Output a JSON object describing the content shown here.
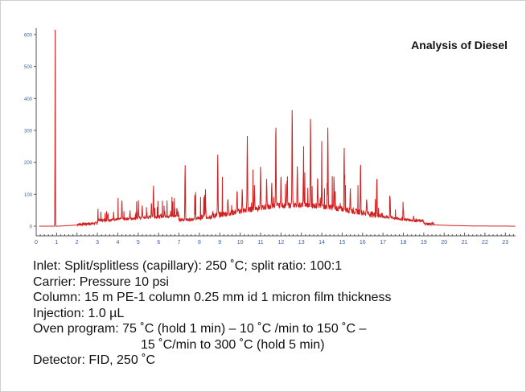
{
  "chart_data": {
    "type": "line",
    "title": "Analysis of Diesel",
    "xlabel": "",
    "ylabel": "",
    "xlim": [
      0,
      23.5
    ],
    "ylim": [
      -20,
      620
    ],
    "x_ticks": [
      "0",
      "1",
      "2",
      "3",
      "4",
      "5",
      "6",
      "7",
      "8",
      "9",
      "10",
      "11",
      "12",
      "13",
      "14",
      "15",
      "16",
      "17",
      "18",
      "19",
      "20",
      "21",
      "22",
      "23"
    ],
    "y_ticks": [
      "0",
      "100",
      "200",
      "300",
      "400",
      "500",
      "600"
    ],
    "grid": false,
    "series_color": "#d21f1f",
    "peaks": [
      {
        "x": 0.93,
        "y": 615
      },
      {
        "x": 3.1,
        "y": 22
      },
      {
        "x": 3.5,
        "y": 38
      },
      {
        "x": 3.8,
        "y": 40
      },
      {
        "x": 4.2,
        "y": 80
      },
      {
        "x": 4.6,
        "y": 45
      },
      {
        "x": 5.0,
        "y": 50
      },
      {
        "x": 5.2,
        "y": 65
      },
      {
        "x": 5.65,
        "y": 75
      },
      {
        "x": 5.75,
        "y": 130
      },
      {
        "x": 6.3,
        "y": 50
      },
      {
        "x": 6.9,
        "y": 55
      },
      {
        "x": 7.3,
        "y": 195
      },
      {
        "x": 7.8,
        "y": 60
      },
      {
        "x": 8.3,
        "y": 65
      },
      {
        "x": 8.9,
        "y": 215
      },
      {
        "x": 9.4,
        "y": 80
      },
      {
        "x": 9.85,
        "y": 105
      },
      {
        "x": 10.1,
        "y": 110
      },
      {
        "x": 10.35,
        "y": 280
      },
      {
        "x": 10.7,
        "y": 130
      },
      {
        "x": 11.0,
        "y": 175
      },
      {
        "x": 11.3,
        "y": 150
      },
      {
        "x": 11.55,
        "y": 125
      },
      {
        "x": 11.75,
        "y": 320
      },
      {
        "x": 12.0,
        "y": 160
      },
      {
        "x": 12.3,
        "y": 140
      },
      {
        "x": 12.55,
        "y": 370
      },
      {
        "x": 12.8,
        "y": 180
      },
      {
        "x": 13.1,
        "y": 160
      },
      {
        "x": 13.45,
        "y": 345
      },
      {
        "x": 13.8,
        "y": 160
      },
      {
        "x": 14.0,
        "y": 145
      },
      {
        "x": 14.3,
        "y": 305
      },
      {
        "x": 14.6,
        "y": 150
      },
      {
        "x": 15.1,
        "y": 245
      },
      {
        "x": 15.4,
        "y": 120
      },
      {
        "x": 15.9,
        "y": 200
      },
      {
        "x": 16.2,
        "y": 90
      },
      {
        "x": 16.7,
        "y": 145
      },
      {
        "x": 17.35,
        "y": 95
      },
      {
        "x": 18.0,
        "y": 55
      },
      {
        "x": 18.5,
        "y": 28
      },
      {
        "x": 19.4,
        "y": 10
      }
    ]
  },
  "method": {
    "inlet": "Inlet: Split/splitless (capillary): 250 ˚C; split ratio: 100:1",
    "carrier": "Carrier: Pressure 10 psi",
    "column": "Column: 15 m PE-1 column 0.25 mm id 1 micron film thickness",
    "injection": "Injection: 1.0 µL",
    "oven_line1": "Oven program: 75 ˚C (hold 1 min) – 10 ˚C /min to 150 ˚C –",
    "oven_line2": "15 ˚C/min to 300 ˚C (hold 5 min)",
    "detector": "Detector: FID, 250 ˚C"
  }
}
